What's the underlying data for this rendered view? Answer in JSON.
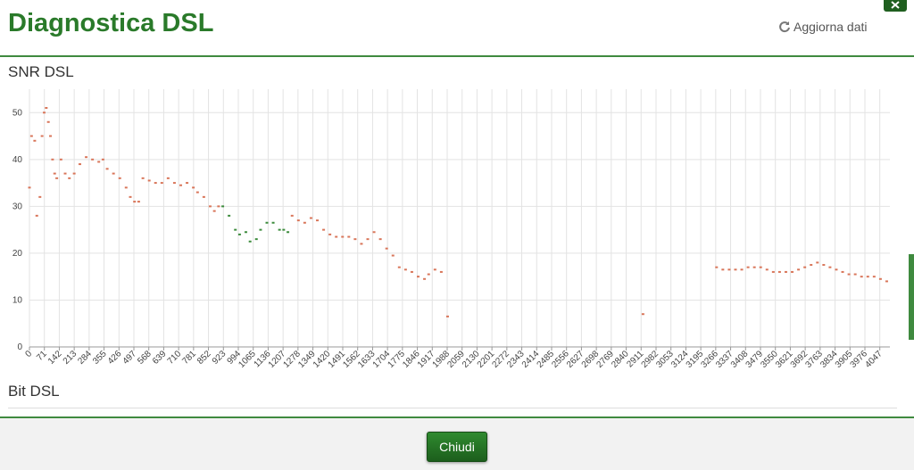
{
  "header": {
    "title": "Diagnostica DSL",
    "refresh": "Aggiorna dati"
  },
  "bit_section": {
    "title": "Bit DSL"
  },
  "footer": {
    "button": "Chiudi"
  },
  "chart_data": {
    "type": "scatter",
    "title": "SNR DSL",
    "xlim": [
      0,
      4095
    ],
    "ylim": [
      0,
      55
    ],
    "xticks": [
      0,
      71,
      142,
      213,
      284,
      355,
      426,
      497,
      568,
      639,
      710,
      781,
      852,
      923,
      994,
      1065,
      1136,
      1207,
      1278,
      1349,
      1420,
      1491,
      1562,
      1633,
      1704,
      1775,
      1846,
      1917,
      1988,
      2059,
      2130,
      2201,
      2272,
      2343,
      2414,
      2485,
      2556,
      2627,
      2698,
      2769,
      2840,
      2911,
      2982,
      3053,
      3124,
      3195,
      3266,
      3337,
      3408,
      3479,
      3550,
      3621,
      3692,
      3763,
      3834,
      3905,
      3976,
      4047
    ],
    "yticks": [
      0,
      10,
      20,
      30,
      40,
      50
    ],
    "grid": true,
    "series": [
      {
        "color": "#d9765a",
        "x": [
          0,
          10,
          25,
          35,
          50,
          60,
          70,
          80,
          90,
          100,
          110,
          120,
          130,
          150,
          170,
          190,
          213,
          240,
          270,
          300,
          330,
          350,
          370,
          400,
          430,
          460,
          480,
          500,
          520,
          540,
          570,
          600,
          630,
          660,
          690,
          720,
          750,
          780,
          800,
          830,
          860,
          880,
          900,
          1250,
          1280,
          1310,
          1340,
          1370,
          1400,
          1430,
          1460,
          1490,
          1520,
          1550,
          1580,
          1610,
          1640,
          1670,
          1700,
          1730,
          1760,
          1790,
          1820,
          1850,
          1880,
          1900,
          1930,
          1960,
          1990,
          2920,
          3270,
          3300,
          3330,
          3360,
          3390,
          3420,
          3450,
          3480,
          3510,
          3540,
          3570,
          3600,
          3630,
          3660,
          3690,
          3720,
          3750,
          3780,
          3810,
          3840,
          3870,
          3900,
          3930,
          3960,
          3990,
          4020,
          4050,
          4080
        ],
        "values": [
          34,
          45,
          44,
          28,
          32,
          45,
          50,
          51,
          48,
          45,
          40,
          37,
          36,
          40,
          37,
          36,
          37,
          39,
          40.5,
          40,
          39.5,
          40,
          38,
          37,
          36,
          34,
          32,
          31,
          31,
          36,
          35.5,
          35,
          35,
          36,
          35,
          34.5,
          35,
          34,
          33,
          32,
          30,
          29,
          30,
          28,
          27,
          26.5,
          27.5,
          27,
          25,
          24,
          23.5,
          23.5,
          23.5,
          23,
          22,
          23,
          24.5,
          23,
          21,
          19.5,
          17,
          16.5,
          16,
          15,
          14.5,
          15.5,
          16.5,
          16,
          6.5,
          7,
          17,
          16.5,
          16.5,
          16.5,
          16.5,
          17,
          17,
          17,
          16.5,
          16,
          16,
          16,
          16,
          16.5,
          17,
          17.5,
          18,
          17.5,
          17,
          16.5,
          16,
          15.5,
          15.5,
          15,
          15,
          15,
          14.5,
          14
        ]
      },
      {
        "color": "#3d8c3d",
        "x": [
          920,
          950,
          980,
          1000,
          1030,
          1050,
          1080,
          1100,
          1130,
          1160,
          1190,
          1210,
          1230
        ],
        "values": [
          30,
          28,
          25,
          24,
          24.5,
          22.5,
          23,
          25,
          26.5,
          26.5,
          25,
          25,
          24.5
        ]
      }
    ]
  }
}
